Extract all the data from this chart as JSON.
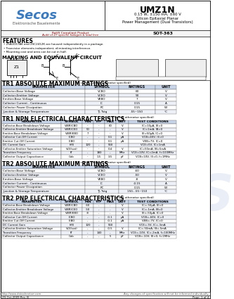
{
  "title": "UMZ1N",
  "subtitle1": "0.15 W, ±150 mA, ±60 V",
  "subtitle2": "Silicon Epitaxial Planar",
  "subtitle3": "Power Management (Dual Transistors)",
  "package": "SOT-363",
  "rohs_line1": "RoHS Compliant Product",
  "rohs_line2": "Audit of 27 specific halogen & lead free",
  "features_title": "FEATURES",
  "features": [
    "2SA1037AK and 2SC2412K are housed independently in a package.",
    "Transistor elements independent, eliminating interference.",
    "Mounting cost and area can be cut in half."
  ],
  "marking_title": "MARKING AND EQUIVALENT CIRCUIT",
  "tr1_abs_title": "TR1 ABSOLUTE MAXIMUM RATINGS",
  "tr1_abs_sub": "(T₁ = 25°C unless otherwise specified)",
  "tr1_abs_headers": [
    "PARAMETER",
    "SYMBOL",
    "RATINGS",
    "UNIT"
  ],
  "tr1_abs_rows": [
    [
      "Collector-Base Voltage",
      "VCBO",
      "60",
      "V"
    ],
    [
      "Collector-Emitter Voltage",
      "VCEO",
      "50",
      "V"
    ],
    [
      "Emitter-Base Voltage",
      "VEBO",
      "7",
      "V"
    ],
    [
      "Collector Current - Continuous",
      "IC",
      "0.15",
      "A"
    ],
    [
      "Collector Power Dissipation",
      "PC",
      "0.15",
      "W"
    ],
    [
      "Junction & Storage Temperature",
      "TJ, Tstg",
      "-55~150",
      "°C"
    ]
  ],
  "tr1_npn_title": "TR1 NPN ELECTRICAL CHARACTERISTICS",
  "tr1_npn_sub": "(T₁ = 25°C unless otherwise specified)",
  "tr1_npn_headers": [
    "PARAMETER",
    "SYMBOL",
    "MIN",
    "TYP",
    "MAX",
    "UNIT",
    "TEST CONDITIONS"
  ],
  "tr1_npn_rows": [
    [
      "Collector-Base Breakdown Voltage",
      "V(BR)CBO",
      "-",
      "-",
      "60",
      "V",
      "IC=10μA, IE=0"
    ],
    [
      "Collector-Emitter Breakdown Voltage",
      "V(BR)CEO",
      "50",
      "-",
      "-",
      "V",
      "IC=1mA, IB=0"
    ],
    [
      "Emitter-Base Breakdown Voltage",
      "V(BR)EBO",
      "7",
      "-",
      "-",
      "V",
      "IE=50μA, IC=0"
    ],
    [
      "Collector Cut-Off Current",
      "ICBO",
      "-",
      "-",
      "0.1",
      "μA",
      "VCB=40V, IE=0"
    ],
    [
      "Emitter Cut-Off Current",
      "IEBO",
      "-",
      "-",
      "0.1",
      "μA",
      "VEB=7V, IC=0"
    ],
    [
      "DC Current Gain",
      "hFE",
      "120",
      "-",
      "560",
      "",
      "VCE=5V, IC=1mA"
    ],
    [
      "Collector-Emitter Saturation Voltage",
      "VCE(sat)",
      "-",
      "-",
      "0.4",
      "V",
      "IC=50mA, IB=5mA"
    ],
    [
      "Transition Frequency",
      "fT",
      "-",
      "180",
      "-",
      "MHz",
      "VCE=10V, IC=2mA, f=100MHz"
    ],
    [
      "Collector Output Capacitance",
      "Cob",
      "-",
      "1.5",
      "3.5",
      "pF",
      "VCB=10V, IE=0, f=1MHz"
    ]
  ],
  "tr2_abs_title": "TR2 ABSOLUTE MAXIMUM RATINGS",
  "tr2_abs_sub": "(T₁ = 25°C unless otherwise specified)",
  "tr2_abs_headers": [
    "PARAMETER",
    "SYMBOL",
    "RATINGS",
    "UNIT"
  ],
  "tr2_abs_rows": [
    [
      "Collector-Base Voltage",
      "VCBO",
      "-60",
      "V"
    ],
    [
      "Collector-Emitter Voltage",
      "VCEO",
      "-50",
      "V"
    ],
    [
      "Emitter-Base Voltage",
      "VEBO",
      "-8",
      "V"
    ],
    [
      "Collector Current - Continuous",
      "IC",
      "-0.15",
      "A"
    ],
    [
      "Collector Power Dissipation",
      "PC",
      "0.15",
      "W"
    ],
    [
      "Junction & Storage Temperature",
      "TJ, Tstg",
      "150, -55~150",
      "°C"
    ]
  ],
  "tr2_pnp_title": "TR2 PNP ELECTRICAL CHARACTERISTICS",
  "tr2_pnp_sub": "(T₁ = 25°C unless otherwise specified)",
  "tr2_pnp_headers": [
    "PARAMETER",
    "SYMBOL",
    "MIN",
    "TYP",
    "MAX",
    "UNIT",
    "TEST CONDITIONS"
  ],
  "tr2_pnp_rows": [
    [
      "Collector-Base Breakdown Voltage",
      "V(BR)CBO",
      "-60",
      "-",
      "-",
      "V",
      "IC=-50μA, IE=0"
    ],
    [
      "Collector-Emitter Breakdown Voltage",
      "V(BR)CEO",
      "-50",
      "-",
      "-",
      "V",
      "IC=-1mA, IB=0"
    ],
    [
      "Emitter-Base Breakdown Voltage",
      "V(BR)EBO",
      "-8",
      "-",
      "-",
      "V",
      "IE=-50μA, IC=0"
    ],
    [
      "Collector Cut-Off Current",
      "ICBO",
      "-",
      "-",
      "-0.1",
      "μA",
      "VCB=-60V, IC=0"
    ],
    [
      "Emitter Cut-Off Current",
      "IEBO",
      "-",
      "-",
      "-0.1",
      "μA",
      "VEB=-7V, IC=0"
    ],
    [
      "DC Current Gain",
      "hFE",
      "120",
      "-",
      "560",
      "",
      "VCE=-5V, IC=-3mA"
    ],
    [
      "Collector-Emitter Saturation Voltage",
      "VCE(sat)",
      "-",
      "-",
      "-0.5",
      "V",
      "IC=-50mA, IB=-5mA"
    ],
    [
      "Transition Frequency",
      "fT",
      "-",
      "140",
      "-",
      "MHz",
      "VCE=-10V, IC=-2mA, f=100MHz"
    ],
    [
      "Collector Output Capacitance",
      "Cob",
      "-",
      "-",
      "5",
      "pF",
      "VCB=-10V, IE=0, f=1MHz"
    ]
  ],
  "footer_url": "http://www.datasheetarr.com",
  "footer_note": "Any changes of specification will not be informed individually.",
  "footer_date": "29-Oct-2009 Rev. B",
  "footer_page": "Page: 1 of 4",
  "secos_blue": "#3a7abf",
  "header_bg": "#c8d4e8",
  "alt_bg": "#eef0f8"
}
